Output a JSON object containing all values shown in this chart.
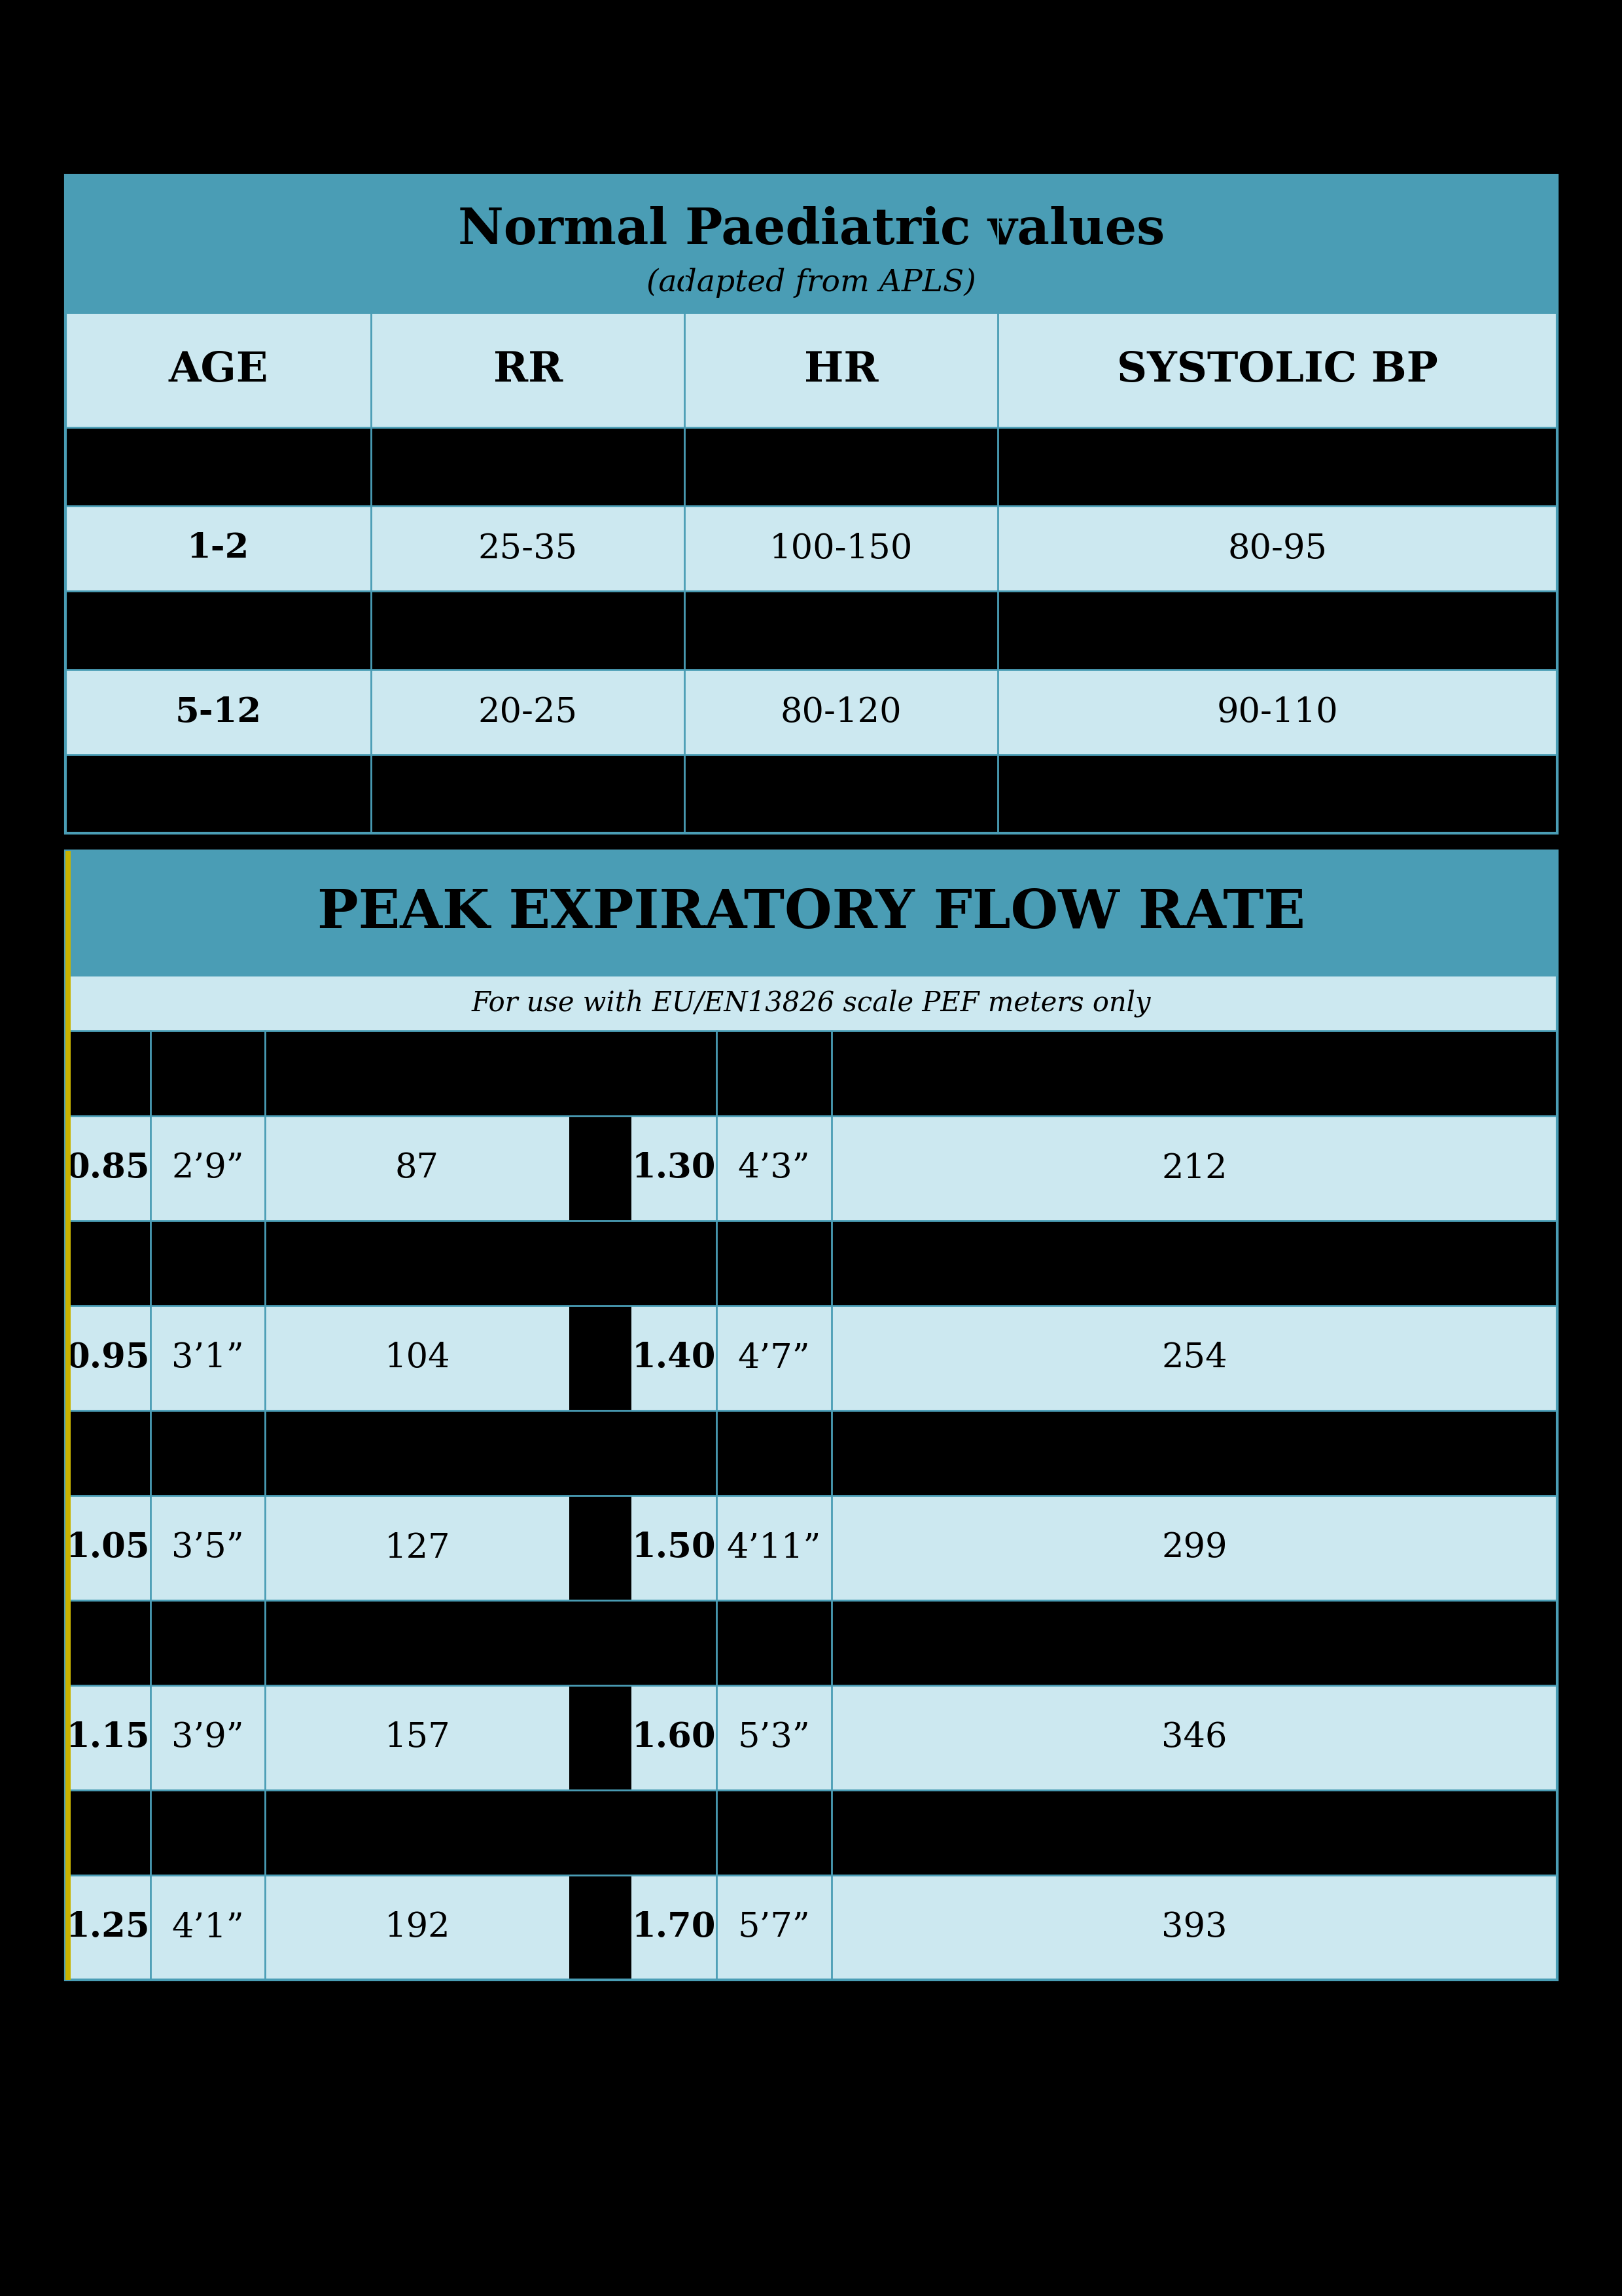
{
  "background_color": "#000000",
  "teal_header_color": "#4a9db5",
  "light_blue_row": "#cce8f0",
  "border_color": "#4a9db5",
  "table1_title": "Normal Paediatric values",
  "table1_subtitle": "(adapted from APLS)",
  "table1_headers": [
    "AGE",
    "RR",
    "HR",
    "SYSTOLIC BP"
  ],
  "table1_data": [
    [
      "",
      "",
      "",
      ""
    ],
    [
      "1-2",
      "25-35",
      "100-150",
      "80-95"
    ],
    [
      "",
      "",
      "",
      ""
    ],
    [
      "5-12",
      "20-25",
      "80-120",
      "90-110"
    ],
    [
      "",
      "",
      "",
      ""
    ]
  ],
  "table1_row_colors": [
    "#000000",
    "#cce8f0",
    "#000000",
    "#cce8f0",
    "#000000"
  ],
  "table2_title": "PEAK EXPIRATORY FLOW RATE",
  "table2_subtitle": "For use with EU/EN13826 scale PEF meters only",
  "table2_left": [
    [
      "0.85",
      "2’9”",
      "87"
    ],
    [
      "0.95",
      "3’1”",
      "104"
    ],
    [
      "1.05",
      "3’5”",
      "127"
    ],
    [
      "1.15",
      "3’9”",
      "157"
    ],
    [
      "1.25",
      "4’1”",
      "192"
    ]
  ],
  "table2_right": [
    [
      "1.30",
      "4’3”",
      "212"
    ],
    [
      "1.40",
      "4’7”",
      "254"
    ],
    [
      "1.50",
      "4’11”",
      "299"
    ],
    [
      "1.60",
      "5’3”",
      "346"
    ],
    [
      "1.70",
      "5’7”",
      "393"
    ]
  ]
}
